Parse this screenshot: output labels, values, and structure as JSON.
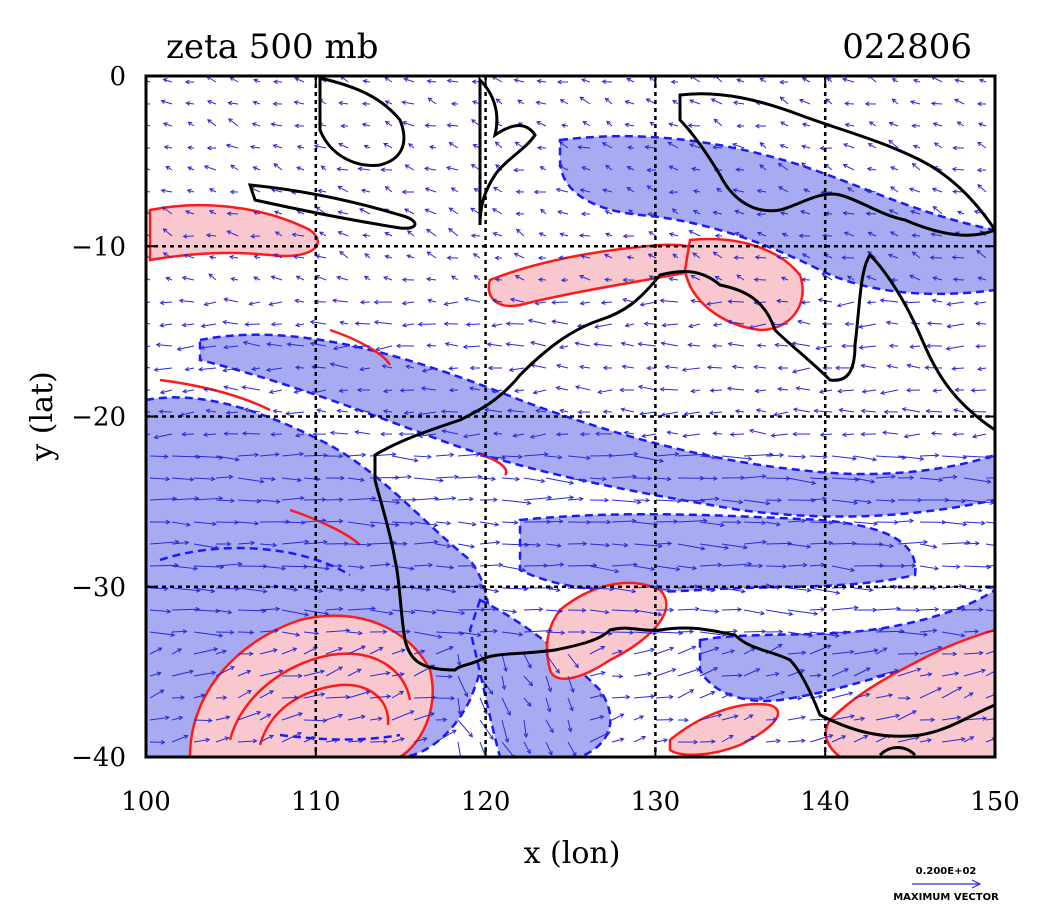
{
  "chart_data": {
    "type": "contour",
    "title": "zeta 500 mb",
    "date_label": "022806",
    "xlabel": "x (lon)",
    "ylabel": "y (lat)",
    "xlim": [
      100,
      150
    ],
    "ylim": [
      -40,
      0
    ],
    "x_ticks": [
      {
        "value": 100,
        "label": "100"
      },
      {
        "value": 110,
        "label": "110"
      },
      {
        "value": 120,
        "label": "120"
      },
      {
        "value": 130,
        "label": "130"
      },
      {
        "value": 140,
        "label": "140"
      },
      {
        "value": 150,
        "label": "150"
      }
    ],
    "y_ticks": [
      {
        "value": 0,
        "label": "0"
      },
      {
        "value": -10,
        "label": "−10"
      },
      {
        "value": -20,
        "label": "−20"
      },
      {
        "value": -30,
        "label": "−30"
      },
      {
        "value": -40,
        "label": "−40"
      }
    ],
    "grid": true,
    "grid_lon": [
      110,
      120,
      130,
      140
    ],
    "grid_lat": [
      -10,
      -20,
      -30
    ],
    "colors": {
      "positive_fill": "#f9c8cf",
      "positive_contour": "#ff1a1a",
      "negative_fill": "#a9abf2",
      "negative_contour": "#1a1aff",
      "vector": "#2a2ad6",
      "coastline": "#000000"
    },
    "vector_reference": {
      "value_label": "0.200E+02",
      "caption": "MAXIMUM VECTOR"
    }
  }
}
